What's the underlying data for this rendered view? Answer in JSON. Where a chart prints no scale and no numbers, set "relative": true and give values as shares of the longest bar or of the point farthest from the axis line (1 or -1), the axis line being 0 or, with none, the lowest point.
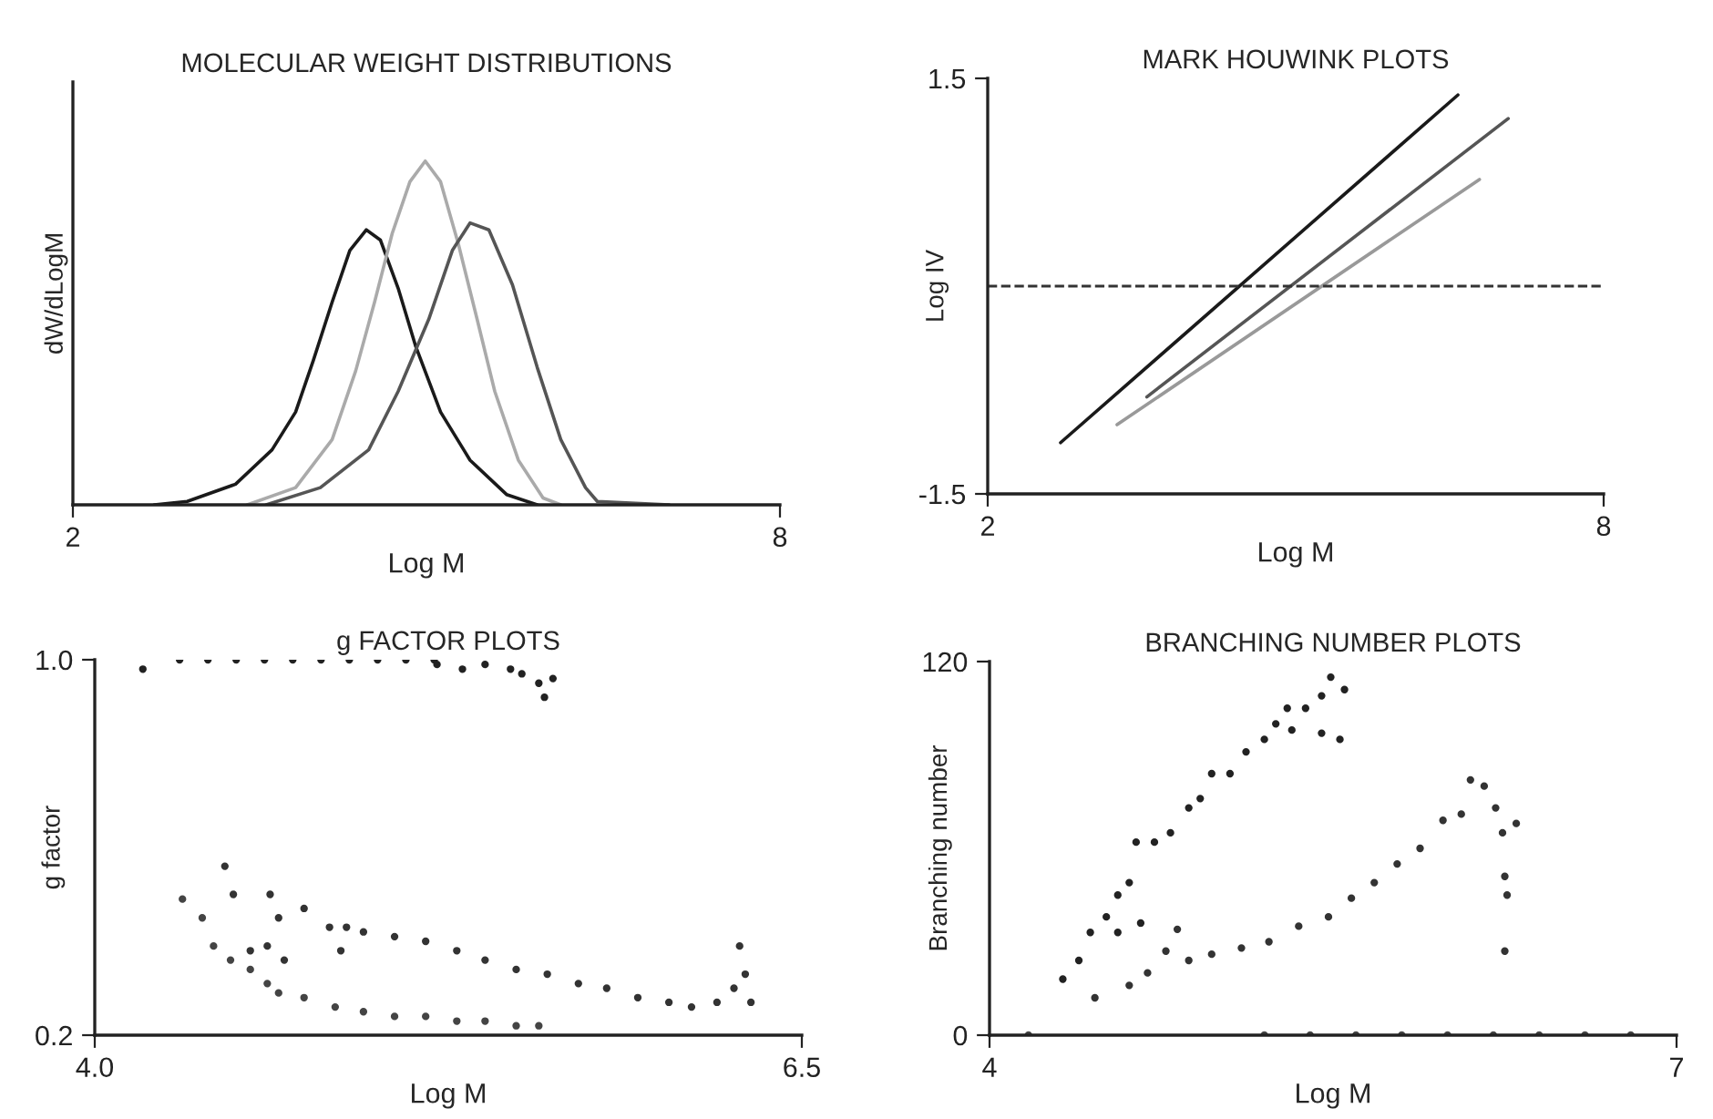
{
  "chart_data": [
    {
      "type": "line",
      "title": "MOLECULAR WEIGHT DISTRIBUTIONS",
      "xlabel": "Log M",
      "ylabel": "dW/dLogM",
      "relative": true,
      "xlim": [
        2,
        8
      ],
      "xticks": [
        2,
        8
      ],
      "grid": false,
      "series": [
        {
          "color": "#1a1a1a",
          "x": [
            2.69,
            2.97,
            3.38,
            3.69,
            3.89,
            4.04,
            4.2,
            4.35,
            4.49,
            4.61,
            4.76,
            4.91,
            5.12,
            5.37,
            5.68,
            5.94
          ],
          "values": [
            0,
            0.01,
            0.06,
            0.16,
            0.27,
            0.42,
            0.59,
            0.74,
            0.8,
            0.77,
            0.63,
            0.46,
            0.27,
            0.13,
            0.03,
            0
          ]
        },
        {
          "color": "#aaaaaa",
          "x": [
            3.48,
            3.89,
            4.2,
            4.4,
            4.56,
            4.71,
            4.86,
            4.99,
            5.12,
            5.27,
            5.43,
            5.58,
            5.78,
            5.99,
            6.14
          ],
          "values": [
            0,
            0.05,
            0.19,
            0.39,
            0.59,
            0.79,
            0.94,
            1.0,
            0.94,
            0.76,
            0.54,
            0.33,
            0.13,
            0.02,
            0
          ]
        },
        {
          "color": "#555555",
          "x": [
            3.64,
            4.1,
            4.51,
            4.76,
            5.02,
            5.22,
            5.37,
            5.53,
            5.73,
            5.94,
            6.14,
            6.35,
            6.45,
            7.06
          ],
          "values": [
            0,
            0.05,
            0.16,
            0.33,
            0.54,
            0.74,
            0.82,
            0.8,
            0.64,
            0.4,
            0.19,
            0.05,
            0.01,
            0
          ]
        }
      ]
    },
    {
      "type": "line",
      "title": "MARK HOUWINK PLOTS",
      "xlabel": "Log M",
      "ylabel": "Log IV",
      "xlim": [
        2,
        8
      ],
      "xticks": [
        2,
        8
      ],
      "ylim": [
        -1.5,
        1.5
      ],
      "yticks": [
        -1.5,
        1.5
      ],
      "grid": false,
      "ref_lines": [
        {
          "axis": "y",
          "value": 0,
          "color": "#333333",
          "line_style": "dashed"
        }
      ],
      "series": [
        {
          "color": "#1a1a1a",
          "x": [
            2.71,
            6.58
          ],
          "values": [
            -1.13,
            1.38
          ]
        },
        {
          "color": "#555555",
          "x": [
            3.55,
            7.07
          ],
          "values": [
            -0.8,
            1.21
          ]
        },
        {
          "color": "#999999",
          "x": [
            3.26,
            6.79
          ],
          "values": [
            -1.0,
            0.77
          ]
        }
      ]
    },
    {
      "type": "scatter",
      "title": "g FACTOR PLOTS",
      "xlabel": "Log M",
      "ylabel": "g factor",
      "xlim": [
        4.0,
        6.5
      ],
      "xticks": [
        {
          "value": 4.0,
          "label": "4.0"
        },
        {
          "value": 6.5,
          "label": "6.5"
        }
      ],
      "ylim": [
        0.2,
        1.0
      ],
      "yticks": [
        {
          "value": 0.2,
          "label": "0.2"
        },
        {
          "value": 1.0,
          "label": "1.0"
        }
      ],
      "grid": false,
      "marker": "circle",
      "series": [
        {
          "color": "#222222",
          "x": [
            4.17,
            4.3,
            4.4,
            4.5,
            4.6,
            4.7,
            4.8,
            4.9,
            5.0,
            5.1,
            5.2,
            5.21,
            5.3,
            5.38,
            5.47,
            5.51,
            5.57,
            5.59,
            5.62
          ],
          "values": [
            0.98,
            1.0,
            1.0,
            1.0,
            1.0,
            1.0,
            1.0,
            1.0,
            1.0,
            1.0,
            1.0,
            0.99,
            0.98,
            0.99,
            0.98,
            0.97,
            0.95,
            0.92,
            0.96
          ]
        },
        {
          "color": "#333333",
          "x": [
            4.46,
            4.49,
            4.62,
            4.65,
            4.55,
            4.61,
            4.67,
            4.74,
            4.83,
            4.87,
            4.89,
            4.95,
            5.06,
            5.17,
            5.28,
            5.38,
            5.49,
            5.6,
            5.71,
            5.81,
            5.92,
            6.03,
            6.11,
            6.2,
            6.26,
            6.3,
            6.28,
            6.32
          ],
          "values": [
            0.56,
            0.5,
            0.5,
            0.45,
            0.38,
            0.39,
            0.36,
            0.47,
            0.43,
            0.38,
            0.43,
            0.42,
            0.41,
            0.4,
            0.38,
            0.36,
            0.34,
            0.33,
            0.31,
            0.3,
            0.28,
            0.27,
            0.26,
            0.27,
            0.3,
            0.33,
            0.39,
            0.27
          ]
        },
        {
          "color": "#444444",
          "x": [
            4.31,
            4.38,
            4.42,
            4.48,
            4.55,
            4.61,
            4.65,
            4.74,
            4.85,
            4.95,
            5.06,
            5.17,
            5.28,
            5.38,
            5.49,
            5.57
          ],
          "values": [
            0.49,
            0.45,
            0.39,
            0.36,
            0.34,
            0.31,
            0.29,
            0.28,
            0.26,
            0.25,
            0.24,
            0.24,
            0.23,
            0.23,
            0.22,
            0.22
          ]
        }
      ]
    },
    {
      "type": "scatter",
      "title": "BRANCHING NUMBER PLOTS",
      "xlabel": "Log M",
      "ylabel": "Branching number",
      "xlim": [
        4,
        7
      ],
      "xticks": [
        4,
        7
      ],
      "ylim": [
        0,
        120
      ],
      "yticks": [
        0,
        120
      ],
      "grid": false,
      "marker": "circle",
      "series": [
        {
          "color": "#222222",
          "x": [
            4.32,
            4.39,
            4.44,
            4.51,
            4.56,
            4.61,
            4.64,
            4.72,
            4.79,
            4.87,
            4.92,
            4.97,
            5.05,
            5.12,
            5.2,
            5.25,
            5.3,
            5.38,
            5.45,
            5.49,
            5.55,
            5.53,
            5.45,
            5.32,
            4.56,
            4.66
          ],
          "values": [
            18,
            24,
            33,
            38,
            45,
            49,
            62,
            62,
            65,
            73,
            76,
            84,
            84,
            91,
            95,
            100,
            105,
            105,
            109,
            115,
            111,
            95,
            97,
            98,
            33,
            36
          ]
        },
        {
          "color": "#333333",
          "x": [
            4.46,
            4.61,
            4.69,
            4.82,
            4.77,
            4.87,
            4.97,
            5.1,
            5.22,
            5.35,
            5.48,
            5.58,
            5.68,
            5.78,
            5.88,
            5.98,
            6.06,
            6.1,
            6.16,
            6.21,
            6.24,
            6.25,
            6.26,
            6.25,
            6.3
          ],
          "values": [
            12,
            16,
            20,
            34,
            27,
            24,
            26,
            28,
            30,
            35,
            38,
            44,
            49,
            55,
            60,
            69,
            71,
            82,
            80,
            73,
            65,
            51,
            45,
            27,
            68
          ]
        },
        {
          "color": "#444444",
          "x": [
            4.17,
            5.2,
            5.4,
            5.6,
            5.8,
            6.0,
            6.2,
            6.4,
            6.6,
            6.8
          ],
          "values": [
            0,
            0,
            0,
            0,
            0,
            0,
            0,
            0,
            0,
            0
          ]
        }
      ]
    }
  ]
}
